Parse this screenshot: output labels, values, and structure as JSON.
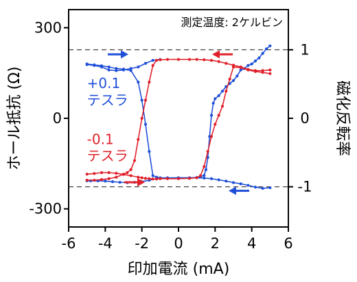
{
  "chart_data": {
    "type": "line",
    "title": "",
    "annotation": "測定温度: 2ケルビン",
    "xlabel": "印加電流 (mA)",
    "ylabel_left": "ホール抵抗 (Ω)",
    "ylabel_right": "磁化反転率",
    "xlim": [
      -6,
      6
    ],
    "ylim_left": [
      -360,
      360
    ],
    "ylim_right": [
      -1.587,
      1.587
    ],
    "xticks": [
      -6,
      -4,
      -2,
      0,
      2,
      4,
      6
    ],
    "xtick_labels": [
      "-6",
      "-4",
      "-2",
      "0",
      "2",
      "4",
      "6"
    ],
    "yticks_left": [
      -300,
      0,
      300
    ],
    "ytick_labels_left": [
      "-300",
      "0",
      "300"
    ],
    "yticks_right": [
      -1,
      0,
      1
    ],
    "ytick_labels_right": [
      "-1",
      "0",
      "1"
    ],
    "reference_lines_right": [
      1,
      -1
    ],
    "grid": false,
    "colors": {
      "blue": "#1f4fd8",
      "red": "#e0202a",
      "reference": "#333333",
      "axis": "#000000"
    },
    "series": [
      {
        "name": "+0.1 テスラ",
        "label_lines": [
          "+0.1",
          "テスラ"
        ],
        "color": "#1f4fd8",
        "branches": [
          {
            "x": [
              -5.0,
              -4.6,
              -4.2,
              -3.8,
              -3.4,
              -3.0,
              -2.6,
              -2.2,
              -2.0,
              -1.8,
              -1.6,
              -1.4,
              -1.2,
              -1.0,
              -0.6,
              0.0,
              0.6,
              1.0,
              1.2,
              1.4,
              1.5,
              1.6,
              1.7,
              1.8,
              1.9,
              2.0,
              2.2,
              2.4,
              2.6,
              2.8,
              3.0,
              3.2,
              3.4,
              3.6,
              3.8,
              4.0,
              4.2,
              4.4,
              4.6,
              4.8,
              5.0
            ],
            "y": [
              180,
              177,
              174,
              170,
              165,
              163,
              158,
              120,
              60,
              -20,
              -110,
              -190,
              -195,
              -197,
              -197,
              -197,
              -197,
              -196,
              -194,
              -189,
              -170,
              -130,
              -60,
              10,
              50,
              65,
              75,
              90,
              105,
              115,
              125,
              140,
              160,
              165,
              175,
              180,
              190,
              200,
              215,
              230,
              240
            ]
          },
          {
            "x": [
              5.0,
              4.6,
              4.2,
              3.8,
              3.4,
              3.0,
              2.6,
              2.2,
              1.8,
              1.4,
              1.0,
              0.6,
              0.0,
              -0.6,
              -1.0,
              -1.2,
              -1.6,
              -2.0,
              -2.4,
              -2.8,
              -3.2,
              -3.6,
              -4.0,
              -4.4,
              -4.8,
              -5.0
            ],
            "y": [
              -230,
              -232,
              -228,
              -222,
              -217,
              -213,
              -208,
              -204,
              -200,
              -198,
              -197,
              -197,
              -197,
              -198,
              -199,
              -200,
              -205,
              -210,
              -212,
              -213,
              -212,
              -210,
              -208,
              -207,
              -207,
              -207
            ]
          },
          {
            "x": [
              -1.0,
              -1.4,
              -1.8,
              -2.2,
              -2.6,
              -3.0,
              -3.4,
              -3.8,
              -4.2,
              -4.6,
              -5.0
            ],
            "y": [
              195,
              192,
              182,
              170,
              165,
              160,
              158,
              160,
              170,
              175,
              178
            ]
          }
        ]
      },
      {
        "name": "-0.1 テスラ",
        "label_lines": [
          "-0.1",
          "テスラ"
        ],
        "color": "#e0202a",
        "branches": [
          {
            "x": [
              -5.0,
              -4.6,
              -4.2,
              -3.8,
              -3.4,
              -3.0,
              -2.6,
              -2.2,
              -2.0,
              -1.8,
              -1.6,
              -1.4,
              -1.2,
              -1.0,
              -0.6,
              0.0,
              0.6,
              1.0,
              1.2,
              1.4,
              1.6,
              1.8,
              2.0,
              2.2,
              2.4,
              2.6,
              2.8,
              3.0
            ],
            "y": [
              -185,
              -183,
              -180,
              -180,
              -182,
              -186,
              -190,
              -195,
              -197,
              -199,
              -200,
              -201,
              -201,
              -200,
              -200,
              -200,
              -199,
              -197,
              -190,
              -160,
              -110,
              -60,
              -20,
              10,
              40,
              90,
              130,
              170
            ]
          },
          {
            "x": [
              5.0,
              4.6,
              4.2,
              3.8,
              3.4,
              3.0,
              2.6,
              2.2,
              1.8,
              1.4,
              1.0,
              0.6,
              0.0,
              -0.6,
              -1.0,
              -1.2,
              -1.4,
              -1.6,
              -1.8,
              -2.0,
              -2.2,
              -2.4,
              -2.6,
              -2.8,
              -3.0,
              -3.4,
              -3.8,
              -4.2,
              -4.6,
              -5.0
            ],
            "y": [
              160,
              158,
              158,
              162,
              170,
              176,
              182,
              188,
              192,
              194,
              195,
              195,
              195,
              195,
              194,
              192,
              175,
              120,
              60,
              0,
              -70,
              -140,
              -170,
              -180,
              -185,
              -195,
              -200,
              -203,
              -205,
              -205
            ]
          },
          {
            "x": [
              3.0,
              3.4,
              3.8,
              4.2,
              4.6,
              5.0
            ],
            "y": [
              170,
              168,
              160,
              155,
              152,
              148
            ]
          }
        ]
      }
    ]
  }
}
